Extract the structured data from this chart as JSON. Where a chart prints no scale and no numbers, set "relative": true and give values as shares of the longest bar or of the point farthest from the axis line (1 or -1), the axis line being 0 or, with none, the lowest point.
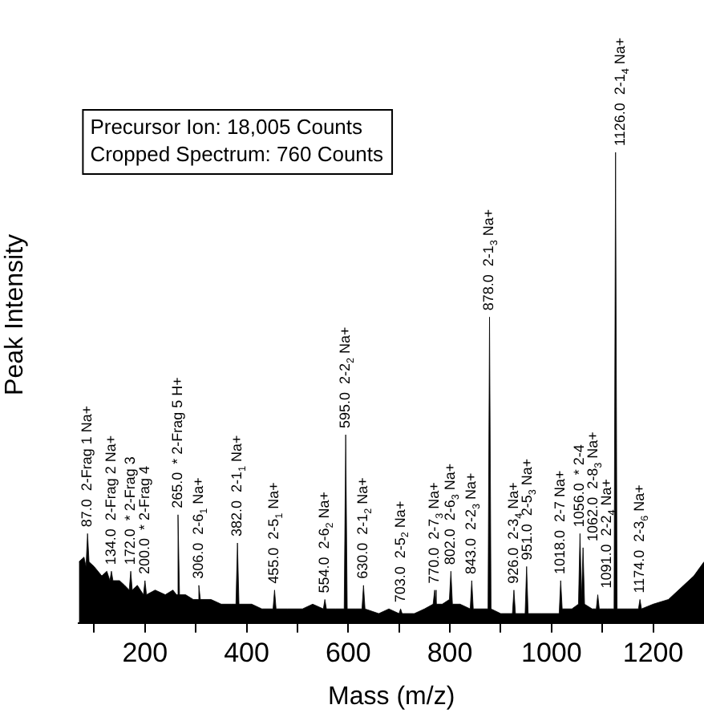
{
  "chart_data": {
    "type": "area",
    "relative": true,
    "xlabel": "Mass (m/z)",
    "ylabel": "Peak Intensity",
    "marker": "none",
    "grid": false,
    "legend": false,
    "xlim": [
      70,
      1300
    ],
    "xticks": [
      {
        "value": 100,
        "label": null
      },
      200,
      {
        "value": 300,
        "label": null
      },
      400,
      {
        "value": 500,
        "label": null
      },
      600,
      {
        "value": 700,
        "label": null
      },
      800,
      {
        "value": 900,
        "label": null
      },
      1000,
      {
        "value": 1100,
        "label": null
      },
      1200
    ],
    "series": [
      {
        "color": "#000000",
        "x": [
          70,
          80,
          84,
          87,
          90,
          100,
          115,
          125,
          131,
          134,
          137,
          150,
          160,
          169,
          172,
          175,
          185,
          197,
          200,
          203,
          220,
          240,
          255,
          262,
          265,
          268,
          280,
          295,
          303,
          306,
          309,
          330,
          350,
          370,
          379,
          382,
          385,
          410,
          430,
          452,
          455,
          458,
          480,
          510,
          530,
          551,
          554,
          557,
          575,
          592,
          595,
          598,
          615,
          627,
          630,
          633,
          660,
          680,
          700,
          703,
          706,
          730,
          750,
          767,
          770,
          773,
          785,
          799,
          802,
          805,
          820,
          840,
          843,
          846,
          860,
          875,
          878,
          881,
          900,
          923,
          926,
          929,
          948,
          951,
          954,
          980,
          1000,
          1015,
          1018,
          1021,
          1040,
          1053,
          1056,
          1059,
          1062,
          1065,
          1080,
          1088,
          1091,
          1094,
          1110,
          1123,
          1126,
          1129,
          1150,
          1171,
          1174,
          1177,
          1200,
          1230,
          1260,
          1280,
          1300
        ],
        "values": [
          0.13,
          0.14,
          0.12,
          0.19,
          0.13,
          0.12,
          0.1,
          0.11,
          0.09,
          0.11,
          0.09,
          0.09,
          0.08,
          0.07,
          0.11,
          0.07,
          0.08,
          0.06,
          0.09,
          0.06,
          0.07,
          0.06,
          0.07,
          0.06,
          0.23,
          0.06,
          0.06,
          0.05,
          0.05,
          0.08,
          0.05,
          0.05,
          0.04,
          0.04,
          0.04,
          0.17,
          0.04,
          0.04,
          0.03,
          0.03,
          0.07,
          0.03,
          0.03,
          0.03,
          0.04,
          0.03,
          0.05,
          0.03,
          0.03,
          0.03,
          0.4,
          0.03,
          0.03,
          0.03,
          0.08,
          0.03,
          0.02,
          0.03,
          0.02,
          0.03,
          0.02,
          0.02,
          0.03,
          0.04,
          0.07,
          0.04,
          0.04,
          0.05,
          0.11,
          0.04,
          0.04,
          0.03,
          0.09,
          0.03,
          0.03,
          0.03,
          0.65,
          0.03,
          0.02,
          0.02,
          0.07,
          0.02,
          0.02,
          0.12,
          0.02,
          0.02,
          0.02,
          0.02,
          0.09,
          0.03,
          0.03,
          0.04,
          0.19,
          0.05,
          0.16,
          0.04,
          0.03,
          0.03,
          0.06,
          0.03,
          0.03,
          0.03,
          1,
          0.03,
          0.03,
          0.03,
          0.05,
          0.03,
          0.04,
          0.05,
          0.08,
          0.1,
          0.13
        ]
      }
    ],
    "annotations": [
      "Precursor Ion: 18,005 Counts",
      "Cropped Spectrum: 760 Counts",
      {
        "text": "87.0  2-Frag 1 Na+",
        "x": 87,
        "y": 0.19
      },
      {
        "text": "134.0  2-Frag 2 Na+",
        "x": 134,
        "y": 0.11
      },
      {
        "text": "172.0  * 2-Frag 3",
        "x": 172,
        "y": 0.11
      },
      {
        "text": "200.0  * 2-Frag 4",
        "x": 200,
        "y": 0.09
      },
      {
        "text": "265.0  * 2-Frag 5 H+",
        "x": 265,
        "y": 0.23
      },
      {
        "text": "306.0  2-6$_{1}$ Na+",
        "x": 306,
        "y": 0.08
      },
      {
        "text": "382.0  2-1$_{1}$ Na+",
        "x": 382,
        "y": 0.17
      },
      {
        "text": "455.0  2-5$_{1}$ Na+",
        "x": 455,
        "y": 0.07
      },
      {
        "text": "554.0  2-6$_{2}$ Na+",
        "x": 554,
        "y": 0.05
      },
      {
        "text": "595.0  2-2$_{2}$ Na+",
        "x": 595,
        "y": 0.4
      },
      {
        "text": "630.0  2-1$_{2}$ Na+",
        "x": 630,
        "y": 0.08
      },
      {
        "text": "703.0  2-5$_{2}$ Na+",
        "x": 703,
        "y": 0.03
      },
      {
        "text": "770.0  2-7$_{3}$ Na+",
        "x": 770,
        "y": 0.07
      },
      {
        "text": "802.0  2-6$_{3}$ Na+",
        "x": 802,
        "y": 0.11
      },
      {
        "text": "843.0  2-2$_{3}$ Na+",
        "x": 843,
        "y": 0.09
      },
      {
        "text": "878.0  2-1$_{3}$ Na+",
        "x": 878,
        "y": 0.65
      },
      {
        "text": "926.0  2-3$_{4}$ Na+",
        "x": 926,
        "y": 0.07
      },
      {
        "text": "951.0  2-5$_{3}$ Na+",
        "x": 951,
        "y": 0.12
      },
      {
        "text": "1018.0  2-7 Na+",
        "x": 1018,
        "y": 0.09
      },
      {
        "text": "1056.0  * 2-4",
        "x": 1056,
        "y": 0.19
      },
      {
        "text": "1062.0  2-8$_{3}$ Na+",
        "x": 1062,
        "y": 0.16
      },
      {
        "text": "1091.0  2-2$_{4}$ Na+",
        "x": 1091,
        "y": 0.06
      },
      {
        "text": "1126.0  2-1$_{4}$ Na+",
        "x": 1126,
        "y": 1
      },
      {
        "text": "1174.0  2-3$_{6}$ Na+",
        "x": 1174,
        "y": 0.05
      }
    ]
  }
}
